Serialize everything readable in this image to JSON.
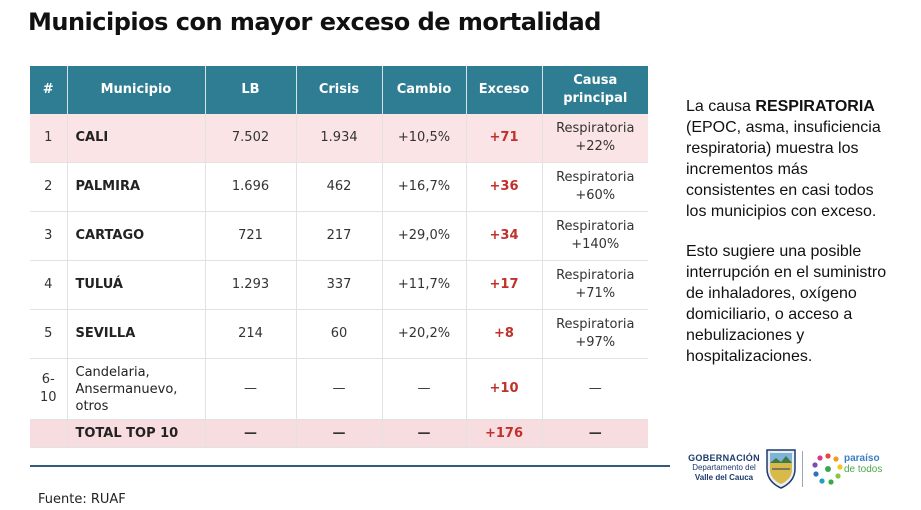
{
  "title": "Municipios con mayor exceso de mortalidad",
  "table": {
    "headers": [
      "#",
      "Municipio",
      "LB",
      "Crisis",
      "Cambio",
      "Exceso",
      "Causa principal"
    ],
    "rows": [
      {
        "n": "1",
        "municipio": "CALI",
        "lb": "7.502",
        "crisis": "1.934",
        "cambio": "+10,5%",
        "exceso": "+71",
        "causa_l1": "Respiratoria",
        "causa_l2": "+22%"
      },
      {
        "n": "2",
        "municipio": "PALMIRA",
        "lb": "1.696",
        "crisis": "462",
        "cambio": "+16,7%",
        "exceso": "+36",
        "causa_l1": "Respiratoria",
        "causa_l2": "+60%"
      },
      {
        "n": "3",
        "municipio": "CARTAGO",
        "lb": "721",
        "crisis": "217",
        "cambio": "+29,0%",
        "exceso": "+34",
        "causa_l1": "Respiratoria",
        "causa_l2": "+140%"
      },
      {
        "n": "4",
        "municipio": "TULUÁ",
        "lb": "1.293",
        "crisis": "337",
        "cambio": "+11,7%",
        "exceso": "+17",
        "causa_l1": "Respiratoria",
        "causa_l2": "+71%"
      },
      {
        "n": "5",
        "municipio": "SEVILLA",
        "lb": "214",
        "crisis": "60",
        "cambio": "+20,2%",
        "exceso": "+8",
        "causa_l1": "Respiratoria",
        "causa_l2": "+97%"
      }
    ],
    "others": {
      "n_l1": "6-",
      "n_l2": "10",
      "mun_l1": "Candelaria,",
      "mun_l2": "Ansermanuevo,",
      "mun_l3": "otros",
      "lb": "—",
      "crisis": "—",
      "cambio": "—",
      "exceso": "+10",
      "causa": "—"
    },
    "total": {
      "label": "TOTAL TOP 10",
      "lb": "—",
      "crisis": "—",
      "cambio": "—",
      "exceso": "+176",
      "causa": "—"
    }
  },
  "side": {
    "p1_pre": "La causa ",
    "p1_bold": "RESPIRATORIA",
    "p1_post": " (EPOC, asma, insuficiencia respiratoria) muestra los incrementos más consistentes en casi todos los municipios con exceso.",
    "p2": "Esto sugiere una posible interrupción en el suministro de inhaladores, oxígeno domiciliario, o acceso a nebulizaciones y hospitalizaciones."
  },
  "source": "Fuente: RUAF",
  "logo": {
    "gov_l1": "GOBERNACIÓN",
    "gov_l2": "Departamento del",
    "gov_l3": "Valle del Cauca",
    "brand_l1": "paraíso",
    "brand_l2": "de todos"
  },
  "colors": {
    "header_bg": "#2f7d92",
    "highlight_row": "#fbe4e6",
    "exceso_text": "#c0312b",
    "rule": "#365b7a"
  }
}
